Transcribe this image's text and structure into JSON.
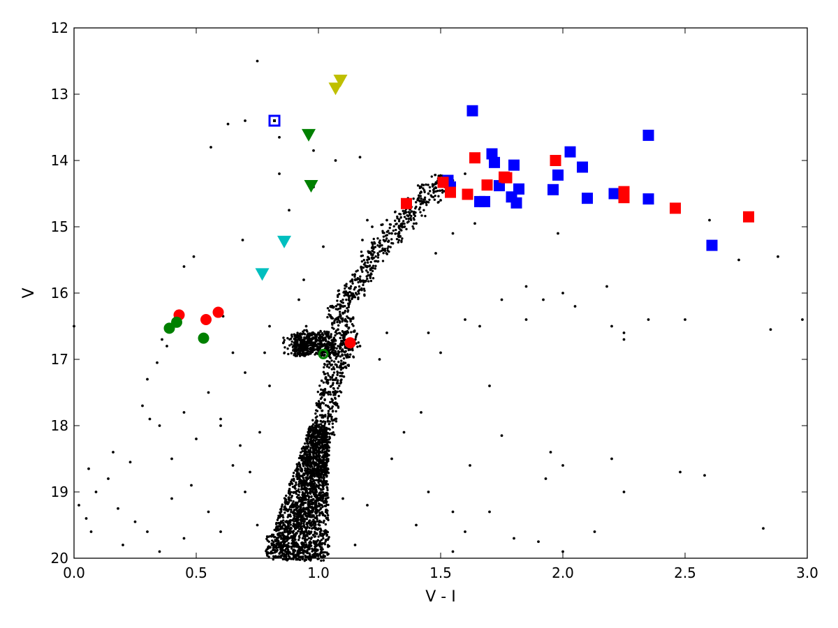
{
  "chart_data": {
    "type": "scatter",
    "title": "",
    "xlabel": "V - I",
    "ylabel": "V",
    "xlim": [
      0.0,
      3.0
    ],
    "ylim": [
      20,
      12
    ],
    "y_inverted": true,
    "grid": false,
    "legend": "none",
    "x_ticks": [
      0.0,
      0.5,
      1.0,
      1.5,
      2.0,
      2.5,
      3.0
    ],
    "x_tick_labels": [
      "0.0",
      "0.5",
      "1.0",
      "1.5",
      "2.0",
      "2.5",
      "3.0"
    ],
    "y_ticks": [
      12,
      13,
      14,
      15,
      16,
      17,
      18,
      19,
      20
    ],
    "y_tick_labels": [
      "12",
      "13",
      "14",
      "15",
      "16",
      "17",
      "18",
      "19",
      "20"
    ],
    "background_stars": {
      "color": "#000000",
      "marker": "dot",
      "description_points": [
        [
          0.75,
          12.5
        ],
        [
          0.7,
          13.4
        ],
        [
          0.63,
          13.45
        ],
        [
          0.56,
          13.8
        ],
        [
          0.84,
          13.65
        ],
        [
          0.98,
          13.85
        ],
        [
          1.07,
          14.0
        ],
        [
          1.17,
          13.95
        ],
        [
          0.84,
          14.2
        ],
        [
          0.88,
          14.75
        ],
        [
          0.69,
          15.2
        ],
        [
          0.49,
          15.45
        ],
        [
          0.45,
          15.6
        ],
        [
          0.61,
          16.35
        ],
        [
          0.36,
          16.7
        ],
        [
          0.38,
          16.8
        ],
        [
          0.34,
          17.05
        ],
        [
          0.3,
          17.3
        ],
        [
          0.28,
          17.7
        ],
        [
          0.31,
          17.9
        ],
        [
          0.35,
          18.0
        ],
        [
          0.16,
          18.4
        ],
        [
          0.23,
          18.55
        ],
        [
          0.14,
          18.8
        ],
        [
          0.06,
          18.65
        ],
        [
          0.09,
          19.0
        ],
        [
          0.05,
          19.4
        ],
        [
          0.07,
          19.6
        ],
        [
          0.02,
          19.2
        ],
        [
          0.18,
          19.25
        ],
        [
          0.25,
          19.45
        ],
        [
          0.2,
          19.8
        ],
        [
          0.3,
          19.6
        ],
        [
          0.4,
          19.1
        ],
        [
          0.48,
          18.9
        ],
        [
          0.55,
          19.3
        ],
        [
          0.6,
          19.6
        ],
        [
          0.65,
          18.6
        ],
        [
          0.7,
          19.0
        ],
        [
          0.5,
          18.2
        ],
        [
          0.45,
          17.8
        ],
        [
          0.55,
          17.5
        ],
        [
          0.6,
          17.9
        ],
        [
          0.68,
          18.3
        ],
        [
          0.4,
          18.5
        ],
        [
          0.35,
          19.9
        ],
        [
          0.45,
          19.7
        ],
        [
          0.75,
          19.5
        ],
        [
          0.7,
          17.2
        ],
        [
          0.65,
          16.9
        ],
        [
          0.78,
          16.9
        ],
        [
          0.8,
          17.4
        ],
        [
          0.76,
          18.1
        ],
        [
          0.72,
          18.7
        ],
        [
          0.6,
          18.0
        ],
        [
          0.0,
          16.5
        ],
        [
          1.55,
          14.3
        ],
        [
          1.45,
          14.5
        ],
        [
          1.35,
          14.8
        ],
        [
          1.3,
          15.1
        ],
        [
          1.25,
          15.3
        ],
        [
          1.2,
          15.5
        ],
        [
          1.15,
          15.8
        ],
        [
          1.12,
          16.0
        ],
        [
          1.1,
          16.3
        ],
        [
          1.08,
          16.55
        ],
        [
          1.4,
          14.95
        ],
        [
          1.5,
          14.6
        ],
        [
          1.28,
          14.9
        ],
        [
          1.22,
          15.0
        ],
        [
          1.18,
          15.2
        ],
        [
          1.33,
          15.0
        ],
        [
          1.42,
          14.4
        ],
        [
          1.38,
          14.7
        ],
        [
          1.2,
          14.9
        ],
        [
          1.6,
          14.2
        ],
        [
          1.67,
          14.6
        ],
        [
          1.64,
          14.95
        ],
        [
          1.55,
          15.1
        ],
        [
          1.48,
          15.4
        ],
        [
          1.45,
          16.6
        ],
        [
          1.5,
          16.9
        ],
        [
          1.6,
          16.4
        ],
        [
          1.66,
          16.5
        ],
        [
          1.75,
          16.1
        ],
        [
          1.85,
          15.9
        ],
        [
          1.98,
          15.1
        ],
        [
          2.0,
          16.0
        ],
        [
          2.05,
          16.2
        ],
        [
          1.92,
          16.1
        ],
        [
          1.85,
          16.4
        ],
        [
          1.7,
          17.4
        ],
        [
          1.75,
          18.15
        ],
        [
          1.62,
          18.6
        ],
        [
          1.55,
          19.3
        ],
        [
          1.6,
          19.6
        ],
        [
          1.7,
          19.3
        ],
        [
          1.8,
          19.7
        ],
        [
          1.9,
          19.75
        ],
        [
          2.0,
          19.9
        ],
        [
          1.95,
          18.4
        ],
        [
          2.0,
          18.6
        ],
        [
          1.93,
          18.8
        ],
        [
          2.13,
          19.6
        ],
        [
          2.2,
          18.5
        ],
        [
          2.25,
          19.0
        ],
        [
          2.2,
          16.5
        ],
        [
          2.25,
          16.6
        ],
        [
          2.35,
          16.4
        ],
        [
          2.5,
          16.4
        ],
        [
          2.48,
          18.7
        ],
        [
          2.58,
          18.75
        ],
        [
          2.18,
          15.9
        ],
        [
          2.6,
          14.9
        ],
        [
          2.72,
          15.5
        ],
        [
          2.88,
          15.45
        ],
        [
          2.85,
          16.55
        ],
        [
          2.98,
          16.4
        ],
        [
          2.82,
          19.55
        ],
        [
          2.25,
          16.7
        ],
        [
          1.55,
          19.9
        ],
        [
          1.45,
          19.0
        ],
        [
          1.4,
          19.5
        ],
        [
          1.35,
          18.1
        ],
        [
          1.3,
          18.5
        ],
        [
          1.42,
          17.8
        ],
        [
          1.25,
          17.0
        ],
        [
          1.28,
          16.6
        ],
        [
          1.17,
          16.8
        ],
        [
          1.2,
          19.2
        ],
        [
          1.15,
          19.8
        ],
        [
          1.1,
          19.1
        ],
        [
          0.98,
          14.4
        ],
        [
          1.02,
          15.3
        ],
        [
          0.94,
          15.8
        ],
        [
          0.92,
          16.1
        ],
        [
          0.95,
          16.5
        ],
        [
          1.05,
          16.2
        ],
        [
          1.0,
          16.6
        ],
        [
          0.8,
          16.5
        ]
      ]
    },
    "main_sequence_region": {
      "description": "dense band of stars",
      "points": [
        [
          0.86,
          19.9
        ],
        [
          0.9,
          19.9
        ],
        [
          0.94,
          19.9
        ],
        [
          0.98,
          19.9
        ],
        [
          0.83,
          19.8
        ],
        [
          0.87,
          19.6
        ],
        [
          0.92,
          19.5
        ],
        [
          0.95,
          19.4
        ],
        [
          0.97,
          19.2
        ],
        [
          0.98,
          19.0
        ],
        [
          0.99,
          18.8
        ],
        [
          1.0,
          18.6
        ],
        [
          1.0,
          18.4
        ],
        [
          1.01,
          18.2
        ],
        [
          1.02,
          18.0
        ],
        [
          1.03,
          17.8
        ],
        [
          1.04,
          17.6
        ],
        [
          1.05,
          17.4
        ],
        [
          1.06,
          17.2
        ],
        [
          1.08,
          17.0
        ],
        [
          1.1,
          16.85
        ],
        [
          1.12,
          16.7
        ],
        [
          1.1,
          16.5
        ],
        [
          1.08,
          16.3
        ],
        [
          1.12,
          16.1
        ],
        [
          1.15,
          15.9
        ],
        [
          1.18,
          15.7
        ],
        [
          1.22,
          15.5
        ],
        [
          1.26,
          15.3
        ],
        [
          1.3,
          15.1
        ],
        [
          1.35,
          14.9
        ],
        [
          1.4,
          14.7
        ],
        [
          1.45,
          14.5
        ],
        [
          1.5,
          14.35
        ],
        [
          0.93,
          16.75
        ],
        [
          0.97,
          16.7
        ],
        [
          1.0,
          16.72
        ],
        [
          0.9,
          16.8
        ],
        [
          1.03,
          16.8
        ]
      ]
    },
    "highlighted_series": [
      {
        "marker": "square",
        "color": "#0000ff",
        "points": [
          [
            1.63,
            13.25
          ],
          [
            2.35,
            13.62
          ],
          [
            1.71,
            13.9
          ],
          [
            2.03,
            13.87
          ],
          [
            1.72,
            14.03
          ],
          [
            1.8,
            14.07
          ],
          [
            2.08,
            14.1
          ],
          [
            1.98,
            14.22
          ],
          [
            1.53,
            14.3
          ],
          [
            1.74,
            14.38
          ],
          [
            1.54,
            14.4
          ],
          [
            1.82,
            14.43
          ],
          [
            1.96,
            14.44
          ],
          [
            2.21,
            14.5
          ],
          [
            1.79,
            14.55
          ],
          [
            2.1,
            14.57
          ],
          [
            2.35,
            14.58
          ],
          [
            1.66,
            14.62
          ],
          [
            1.68,
            14.62
          ],
          [
            1.81,
            14.64
          ],
          [
            2.61,
            15.28
          ]
        ]
      },
      {
        "marker": "square-open",
        "color": "#0000ff",
        "points": [
          [
            0.82,
            13.4
          ]
        ]
      },
      {
        "marker": "square",
        "color": "#ff0000",
        "points": [
          [
            1.64,
            13.96
          ],
          [
            1.97,
            14.0
          ],
          [
            1.76,
            14.25
          ],
          [
            1.77,
            14.26
          ],
          [
            1.51,
            14.33
          ],
          [
            1.69,
            14.37
          ],
          [
            1.54,
            14.48
          ],
          [
            1.61,
            14.51
          ],
          [
            2.25,
            14.47
          ],
          [
            2.25,
            14.56
          ],
          [
            1.36,
            14.65
          ],
          [
            2.46,
            14.72
          ],
          [
            2.76,
            14.85
          ]
        ]
      },
      {
        "marker": "circle",
        "color": "#ff0000",
        "points": [
          [
            0.43,
            16.33
          ],
          [
            0.59,
            16.29
          ],
          [
            0.54,
            16.4
          ],
          [
            1.13,
            16.75
          ]
        ]
      },
      {
        "marker": "circle",
        "color": "#008000",
        "points": [
          [
            0.42,
            16.44
          ],
          [
            0.39,
            16.53
          ],
          [
            0.53,
            16.68
          ]
        ]
      },
      {
        "marker": "circle-open",
        "color": "#008000",
        "points": [
          [
            1.02,
            16.92
          ]
        ]
      },
      {
        "marker": "triangle-down",
        "color": "#bfbf00",
        "points": [
          [
            1.09,
            12.8
          ],
          [
            1.07,
            12.92
          ]
        ]
      },
      {
        "marker": "triangle-down",
        "color": "#008000",
        "points": [
          [
            0.96,
            13.62
          ],
          [
            0.97,
            14.39
          ]
        ]
      },
      {
        "marker": "triangle-down",
        "color": "#00bfbf",
        "points": [
          [
            0.86,
            15.23
          ],
          [
            0.77,
            15.72
          ]
        ]
      }
    ]
  }
}
